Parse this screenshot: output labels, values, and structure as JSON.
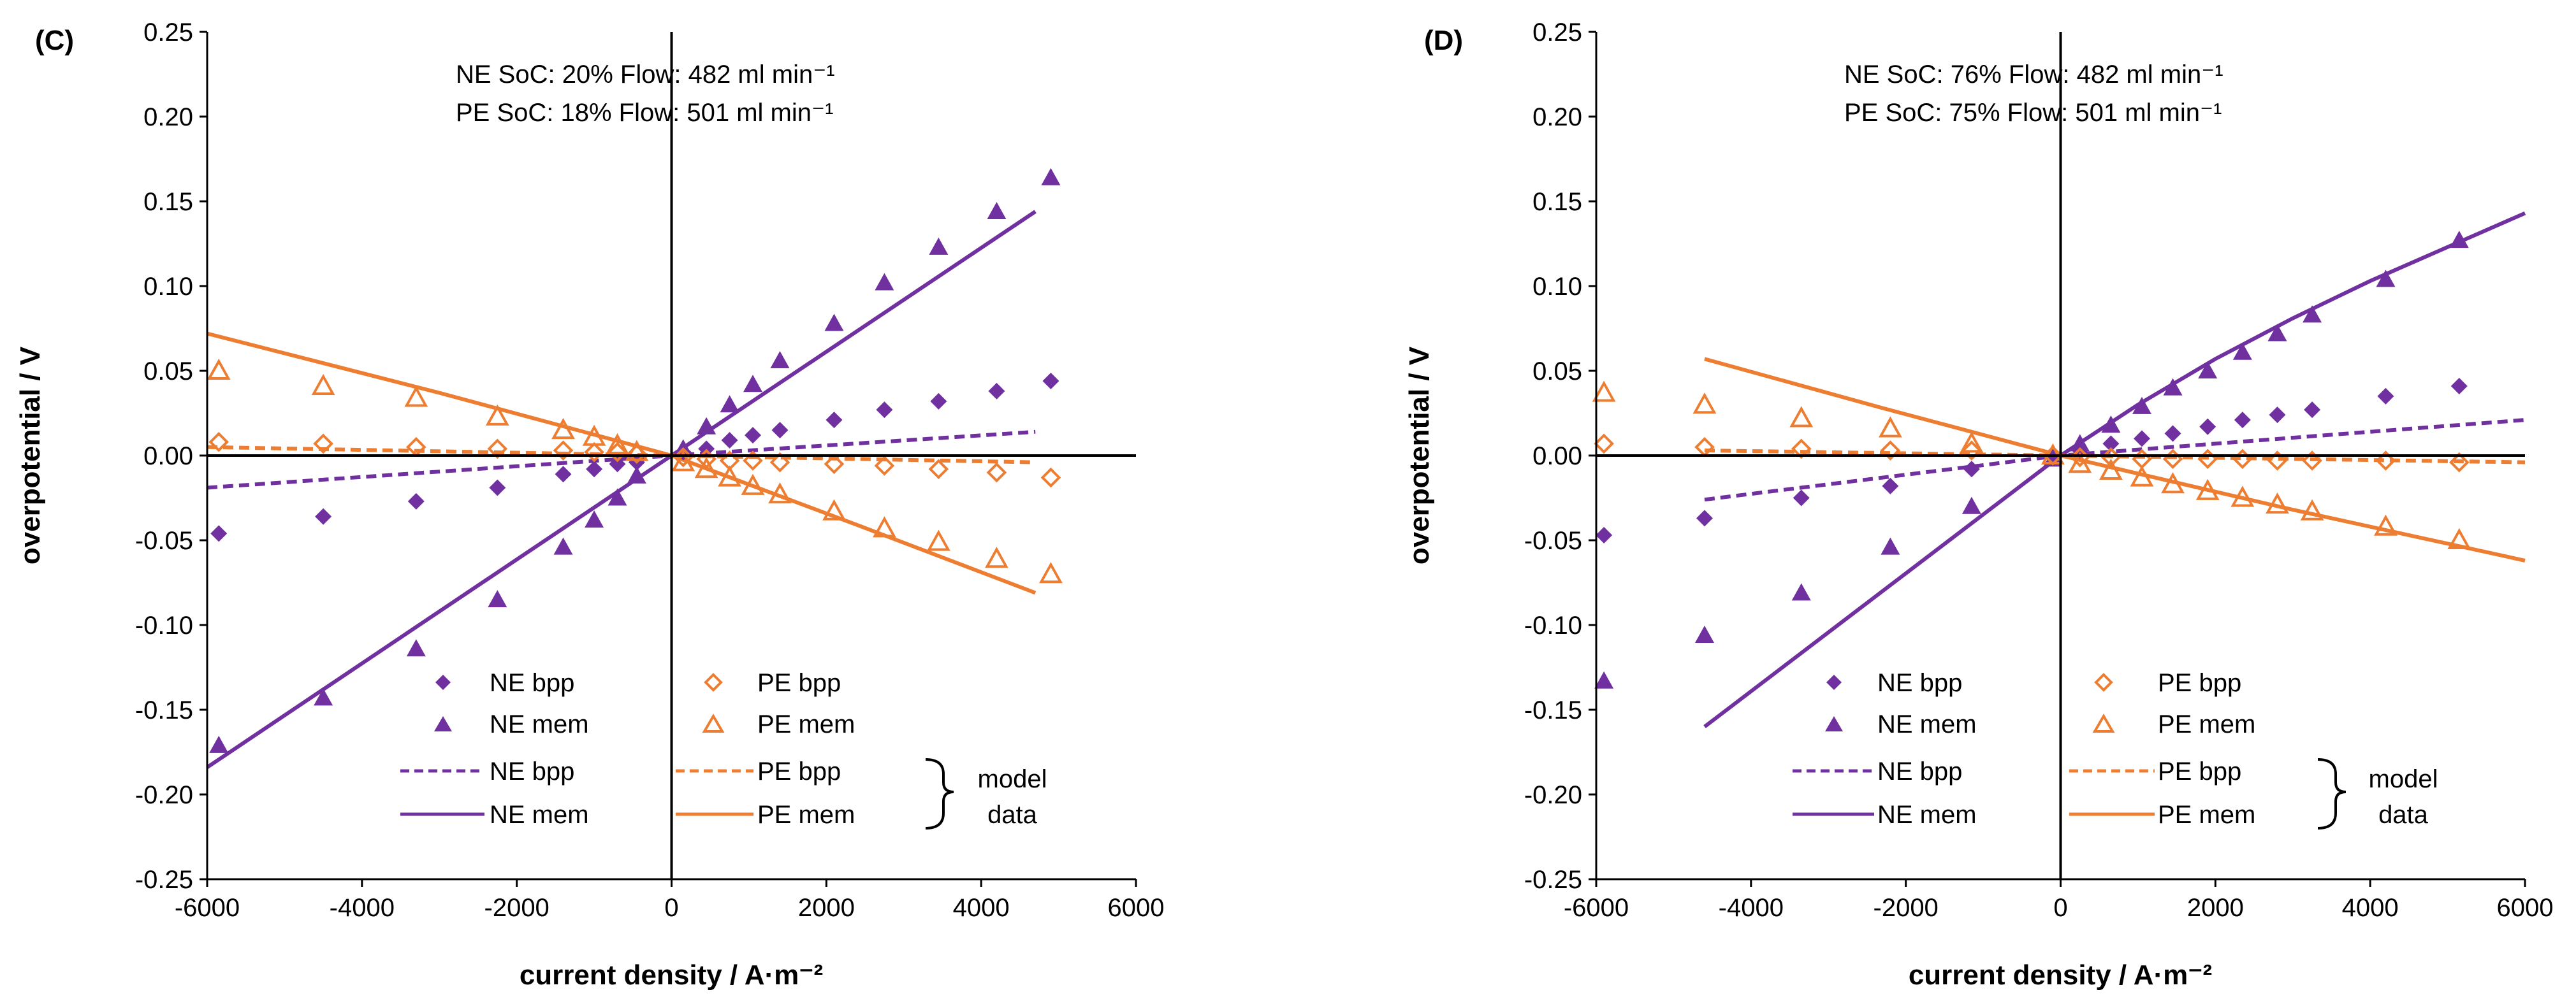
{
  "colors": {
    "ne": "#7030a0",
    "pe": "#ed7d31",
    "axis": "#000000"
  },
  "legend_text": {
    "ne_bpp": "NE bpp",
    "ne_mem": "NE mem",
    "pe_bpp": "PE bpp",
    "pe_mem": "PE mem",
    "model_line1": "model",
    "model_line2": "data"
  },
  "chart_data": [
    {
      "type": "scatter",
      "panel_label": "(C)",
      "annotation_line1": "NE SoC: 20% Flow: 482 ml min⁻¹",
      "annotation_line2": "PE SoC: 18% Flow: 501 ml min⁻¹",
      "xlabel": "current density  / A·m⁻²",
      "ylabel": "overpotential / V",
      "xlim": [
        -6000,
        6000
      ],
      "ylim": [
        -0.25,
        0.25
      ],
      "xticks": [
        -6000,
        -4000,
        -2000,
        0,
        2000,
        4000,
        6000
      ],
      "xtick_labels": [
        "-6000",
        "-4000",
        "-2000",
        "0",
        "2000",
        "4000",
        "6000"
      ],
      "yticks": [
        -0.25,
        -0.2,
        -0.15,
        -0.1,
        -0.05,
        0,
        0.05,
        0.1,
        0.15,
        0.2,
        0.25
      ],
      "ytick_labels": [
        "-0.25",
        "-0.20",
        "-0.15",
        "-0.10",
        "-0.05",
        "0.00",
        "0.05",
        "0.10",
        "0.15",
        "0.20",
        "0.25"
      ],
      "grid": false,
      "legend_position": "bottom",
      "series": [
        {
          "name": "NE bpp",
          "kind": "measured",
          "marker": "diamond-filled",
          "color": "ne",
          "x": [
            -5850,
            -4500,
            -3300,
            -2250,
            -1400,
            -1000,
            -700,
            -450,
            150,
            450,
            750,
            1050,
            1400,
            2100,
            2750,
            3450,
            4200,
            4900
          ],
          "y": [
            -0.046,
            -0.036,
            -0.027,
            -0.019,
            -0.011,
            -0.008,
            -0.005,
            -0.004,
            0.002,
            0.004,
            0.009,
            0.012,
            0.015,
            0.021,
            0.027,
            0.032,
            0.038,
            0.044
          ]
        },
        {
          "name": "NE mem",
          "kind": "measured",
          "marker": "triangle-filled",
          "color": "ne",
          "x": [
            -5850,
            -4500,
            -3300,
            -2250,
            -1400,
            -1000,
            -700,
            -450,
            150,
            450,
            750,
            1050,
            1400,
            2100,
            2750,
            3450,
            4200,
            4900
          ],
          "y": [
            -0.171,
            -0.143,
            -0.114,
            -0.085,
            -0.054,
            -0.038,
            -0.025,
            -0.012,
            0.004,
            0.017,
            0.03,
            0.042,
            0.056,
            0.078,
            0.102,
            0.123,
            0.144,
            0.164
          ]
        },
        {
          "name": "PE bpp",
          "kind": "measured",
          "marker": "diamond-open",
          "color": "pe",
          "x": [
            -5850,
            -4500,
            -3300,
            -2250,
            -1400,
            -1000,
            -700,
            -450,
            150,
            450,
            750,
            1050,
            1400,
            2100,
            2750,
            3450,
            4200,
            4900
          ],
          "y": [
            0.008,
            0.007,
            0.005,
            0.004,
            0.003,
            0.002,
            0.002,
            0.001,
            -0.001,
            -0.002,
            -0.003,
            -0.003,
            -0.004,
            -0.005,
            -0.006,
            -0.008,
            -0.01,
            -0.013
          ]
        },
        {
          "name": "PE mem",
          "kind": "measured",
          "marker": "triangle-open",
          "color": "pe",
          "x": [
            -5850,
            -4500,
            -3300,
            -2250,
            -1400,
            -1000,
            -700,
            -450,
            150,
            450,
            750,
            1050,
            1400,
            2100,
            2750,
            3450,
            4200,
            4900
          ],
          "y": [
            0.05,
            0.041,
            0.034,
            0.023,
            0.015,
            0.011,
            0.006,
            0.002,
            -0.004,
            -0.008,
            -0.013,
            -0.018,
            -0.023,
            -0.033,
            -0.043,
            -0.051,
            -0.061,
            -0.07
          ]
        },
        {
          "name": "NE bpp",
          "kind": "model",
          "line": "dashed",
          "color": "ne",
          "x": [
            -6000,
            0,
            4700
          ],
          "y": [
            -0.019,
            0,
            0.014
          ]
        },
        {
          "name": "NE mem",
          "kind": "model",
          "line": "solid",
          "color": "ne",
          "x": [
            -6000,
            0,
            4700
          ],
          "y": [
            -0.184,
            0,
            0.144
          ]
        },
        {
          "name": "PE bpp",
          "kind": "model",
          "line": "dashed",
          "color": "pe",
          "x": [
            -6000,
            0,
            4700
          ],
          "y": [
            0.005,
            0,
            -0.004
          ]
        },
        {
          "name": "PE mem",
          "kind": "model",
          "line": "solid",
          "color": "pe",
          "x": [
            -6000,
            -3000,
            0,
            2400,
            4700
          ],
          "y": [
            0.072,
            0.037,
            0,
            -0.041,
            -0.081
          ]
        }
      ]
    },
    {
      "type": "scatter",
      "panel_label": "(D)",
      "annotation_line1": "NE SoC: 76% Flow: 482 ml min⁻¹",
      "annotation_line2": "PE SoC: 75% Flow: 501 ml min⁻¹",
      "xlabel": "current density  / A·m⁻²",
      "ylabel": "overpotential / V",
      "xlim": [
        -6000,
        6000
      ],
      "ylim": [
        -0.25,
        0.25
      ],
      "xticks": [
        -6000,
        -4000,
        -2000,
        0,
        2000,
        4000,
        6000
      ],
      "xtick_labels": [
        "-6000",
        "-4000",
        "-2000",
        "0",
        "2000",
        "4000",
        "6000"
      ],
      "yticks": [
        -0.25,
        -0.2,
        -0.15,
        -0.1,
        -0.05,
        0,
        0.05,
        0.1,
        0.15,
        0.2,
        0.25
      ],
      "ytick_labels": [
        "-0.25",
        "-0.20",
        "-0.15",
        "-0.10",
        "-0.05",
        "0.00",
        "0.05",
        "0.10",
        "0.15",
        "0.20",
        "0.25"
      ],
      "grid": false,
      "legend_position": "bottom",
      "series": [
        {
          "name": "NE bpp",
          "kind": "measured",
          "marker": "diamond-filled",
          "color": "ne",
          "x": [
            -5900,
            -4600,
            -3350,
            -2200,
            -1150,
            -100,
            250,
            650,
            1050,
            1450,
            1900,
            2350,
            2800,
            3250,
            4200,
            5150
          ],
          "y": [
            -0.047,
            -0.037,
            -0.025,
            -0.018,
            -0.008,
            -0.001,
            0.003,
            0.007,
            0.01,
            0.013,
            0.017,
            0.021,
            0.024,
            0.027,
            0.035,
            0.041
          ]
        },
        {
          "name": "NE mem",
          "kind": "measured",
          "marker": "triangle-filled",
          "color": "ne",
          "x": [
            -5900,
            -4600,
            -3350,
            -2200,
            -1150,
            -100,
            250,
            650,
            1050,
            1450,
            1900,
            2350,
            2800,
            3250,
            4200,
            5150
          ],
          "y": [
            -0.133,
            -0.106,
            -0.081,
            -0.054,
            -0.03,
            -0.002,
            0.007,
            0.018,
            0.029,
            0.04,
            0.05,
            0.061,
            0.072,
            0.083,
            0.104,
            0.127
          ]
        },
        {
          "name": "PE bpp",
          "kind": "measured",
          "marker": "diamond-open",
          "color": "pe",
          "x": [
            -5900,
            -4600,
            -3350,
            -2200,
            -1150,
            -100,
            250,
            650,
            1050,
            1450,
            1900,
            2350,
            2800,
            3250,
            4200,
            5150
          ],
          "y": [
            0.007,
            0.005,
            0.004,
            0.003,
            0.003,
            0,
            -0.001,
            -0.001,
            -0.002,
            -0.002,
            -0.002,
            -0.002,
            -0.003,
            -0.003,
            -0.003,
            -0.004
          ]
        },
        {
          "name": "PE mem",
          "kind": "measured",
          "marker": "triangle-open",
          "color": "pe",
          "x": [
            -5900,
            -4600,
            -3350,
            -2200,
            -1150,
            -100,
            250,
            650,
            1050,
            1450,
            1900,
            2350,
            2800,
            3250,
            4200,
            5150
          ],
          "y": [
            0.037,
            0.03,
            0.022,
            0.016,
            0.007,
            0,
            -0.005,
            -0.009,
            -0.013,
            -0.017,
            -0.021,
            -0.025,
            -0.029,
            -0.033,
            -0.042,
            -0.05
          ]
        },
        {
          "name": "NE bpp",
          "kind": "model",
          "line": "dashed",
          "color": "ne",
          "x": [
            -4600,
            0,
            6000
          ],
          "y": [
            -0.026,
            0,
            0.021
          ]
        },
        {
          "name": "NE mem",
          "kind": "model",
          "line": "solid",
          "color": "ne",
          "x": [
            -4600,
            -2300,
            0,
            1000,
            2000,
            3000,
            4000,
            5000,
            6000
          ],
          "y": [
            -0.16,
            -0.08,
            0,
            0.03,
            0.057,
            0.081,
            0.103,
            0.123,
            0.143
          ]
        },
        {
          "name": "PE bpp",
          "kind": "model",
          "line": "dashed",
          "color": "pe",
          "x": [
            -4600,
            0,
            6000
          ],
          "y": [
            0.003,
            0,
            -0.004
          ]
        },
        {
          "name": "PE mem",
          "kind": "model",
          "line": "solid",
          "color": "pe",
          "x": [
            -4600,
            -2300,
            0,
            3000,
            6000
          ],
          "y": [
            0.057,
            0.028,
            0,
            -0.032,
            -0.062
          ]
        }
      ]
    }
  ]
}
